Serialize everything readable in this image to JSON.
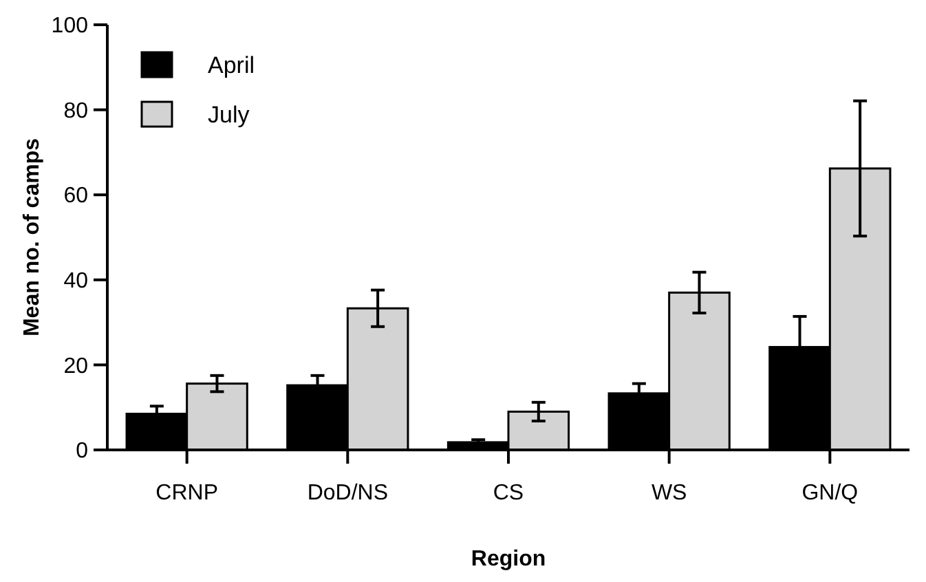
{
  "chart_data": {
    "type": "bar",
    "xlabel": "Region",
    "ylabel": "Mean no. of camps",
    "categories": [
      "CRNP",
      "DoD/NS",
      "CS",
      "WS",
      "GN/Q"
    ],
    "series": [
      {
        "name": "April",
        "color": "#000000",
        "values": [
          8.5,
          15.2,
          1.8,
          13.3,
          24.2
        ],
        "errors": [
          1.8,
          2.3,
          0.6,
          2.3,
          7.2
        ]
      },
      {
        "name": "July",
        "color": "#d3d3d3",
        "values": [
          15.6,
          33.3,
          9.0,
          37.0,
          66.2
        ],
        "errors": [
          1.9,
          4.3,
          2.2,
          4.8,
          15.9
        ]
      }
    ],
    "ylim": [
      0,
      100
    ],
    "yticks": [
      0,
      20,
      40,
      60,
      80,
      100
    ],
    "legend": "top left",
    "grid": false
  }
}
